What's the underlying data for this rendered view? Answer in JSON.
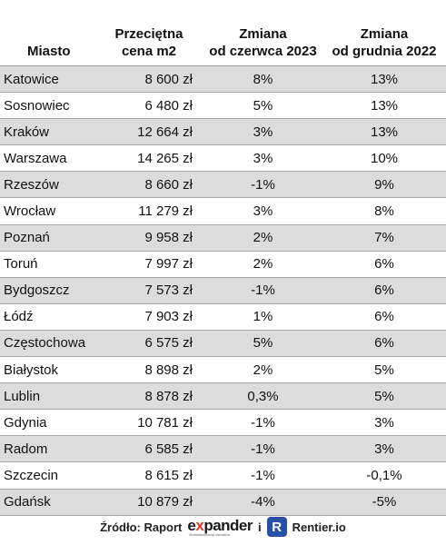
{
  "header": {
    "city": "Miasto",
    "price_l1": "Przeciętna",
    "price_l2": "cena m2",
    "change_june_l1": "Zmiana",
    "change_june_l2": "od czerwca 2023",
    "change_dec_l1": "Zmiana",
    "change_dec_l2": "od grudnia 2022"
  },
  "rows": [
    {
      "city": "Katowice",
      "price": "8 600 zł",
      "june": "8%",
      "dec": "13%"
    },
    {
      "city": "Sosnowiec",
      "price": "6 480 zł",
      "june": "5%",
      "dec": "13%"
    },
    {
      "city": "Kraków",
      "price": "12 664 zł",
      "june": "3%",
      "dec": "13%"
    },
    {
      "city": "Warszawa",
      "price": "14 265 zł",
      "june": "3%",
      "dec": "10%"
    },
    {
      "city": "Rzeszów",
      "price": "8 660 zł",
      "june": "-1%",
      "dec": "9%"
    },
    {
      "city": "Wrocław",
      "price": "11 279 zł",
      "june": "3%",
      "dec": "8%"
    },
    {
      "city": "Poznań",
      "price": "9 958 zł",
      "june": "2%",
      "dec": "7%"
    },
    {
      "city": "Toruń",
      "price": "7 997 zł",
      "june": "2%",
      "dec": "6%"
    },
    {
      "city": "Bydgoszcz",
      "price": "7 573 zł",
      "june": "-1%",
      "dec": "6%"
    },
    {
      "city": "Łódź",
      "price": "7 903 zł",
      "june": "1%",
      "dec": "6%"
    },
    {
      "city": "Częstochowa",
      "price": "6 575 zł",
      "june": "5%",
      "dec": "6%"
    },
    {
      "city": "Białystok",
      "price": "8 898 zł",
      "june": "2%",
      "dec": "5%"
    },
    {
      "city": "Lublin",
      "price": "8 878 zł",
      "june": "0,3%",
      "dec": "5%"
    },
    {
      "city": "Gdynia",
      "price": "10 781 zł",
      "june": "-1%",
      "dec": "3%"
    },
    {
      "city": "Radom",
      "price": "6 585 zł",
      "june": "-1%",
      "dec": "3%"
    },
    {
      "city": "Szczecin",
      "price": "8 615 zł",
      "june": "-1%",
      "dec": "-0,1%"
    },
    {
      "city": "Gdańsk",
      "price": "10 879 zł",
      "june": "-4%",
      "dec": "-5%"
    }
  ],
  "footer": {
    "source_label": "Źródło: Raport",
    "expander_prefix": "e",
    "expander_x": "x",
    "expander_rest": "pander",
    "expander_tagline": "Doświadczony doradca",
    "and": "i",
    "rentier_icon_letter": "R",
    "rentier": "Rentier.io"
  },
  "colors": {
    "row_shade": "#dcdcdc",
    "expander_accent": "#e8342a",
    "rentier_brand": "#2a4fa8"
  }
}
